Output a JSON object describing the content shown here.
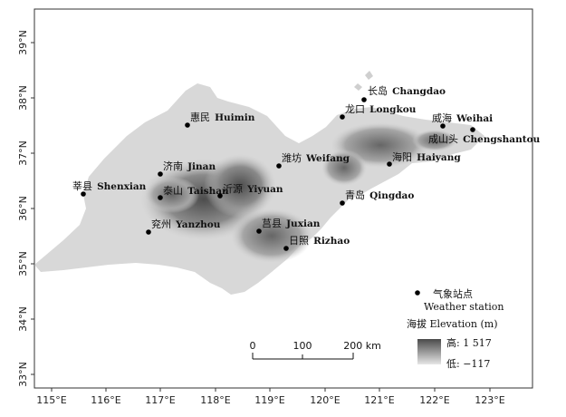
{
  "axes": {
    "x_ticks": [
      "115°E",
      "116°E",
      "117°E",
      "118°E",
      "119°E",
      "120°E",
      "121°E",
      "122°E",
      "123°E"
    ],
    "y_ticks": [
      "39°N",
      "38°N",
      "37°N",
      "36°N",
      "35°N",
      "34°N",
      "33°N"
    ]
  },
  "stations": [
    {
      "cn": "长岛",
      "en": "Changdao"
    },
    {
      "cn": "龙口",
      "en": "Longkou"
    },
    {
      "cn": "威海",
      "en": "Weihai"
    },
    {
      "cn": "成山头",
      "en": "Chengshantou"
    },
    {
      "cn": "惠民",
      "en": "Huimin"
    },
    {
      "cn": "潍坊",
      "en": "Weifang"
    },
    {
      "cn": "海阳",
      "en": "Haiyang"
    },
    {
      "cn": "济南",
      "en": "Jinan"
    },
    {
      "cn": "莘县",
      "en": "Shenxian"
    },
    {
      "cn": "泰山",
      "en": "Taishan"
    },
    {
      "cn": "沂源",
      "en": "Yiyuan"
    },
    {
      "cn": "青岛",
      "en": "Qingdao"
    },
    {
      "cn": "兖州",
      "en": "Yanzhou"
    },
    {
      "cn": "莒县",
      "en": "Juxian"
    },
    {
      "cn": "日照",
      "en": "Rizhao"
    }
  ],
  "legend": {
    "station_cn": "气象站点",
    "station_en": "Weather station",
    "elevation_title": "海拔 Elevation (m)",
    "high_label": "高: 1 517",
    "low_label": "低: −117",
    "high_color": "#4a4a4a",
    "low_color": "#e6e6e6"
  },
  "scalebar": {
    "labels": [
      "0",
      "100",
      "200 km"
    ]
  }
}
